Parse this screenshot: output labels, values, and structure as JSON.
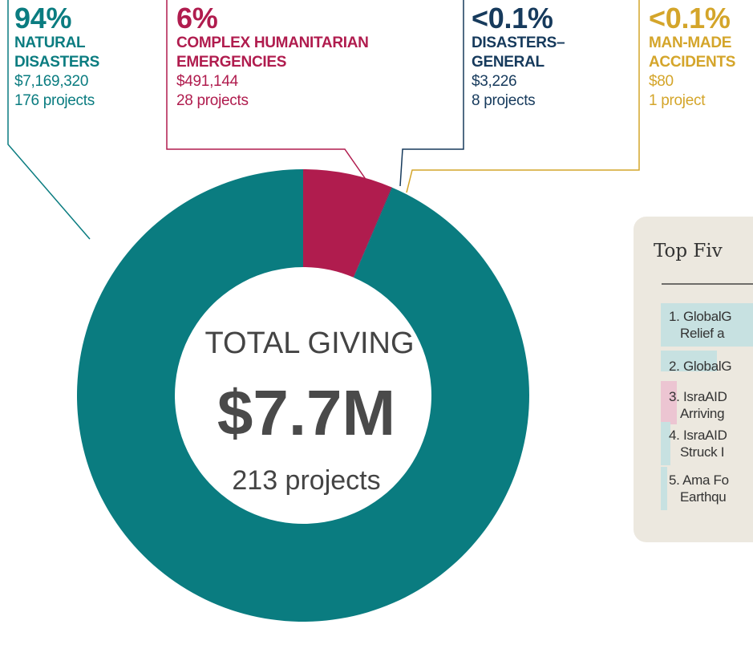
{
  "chart_data": {
    "type": "pie",
    "categories": [
      "NATURAL DISASTERS",
      "COMPLEX HUMANITARIAN EMERGENCIES",
      "DISASTERS–GENERAL",
      "MAN-MADE ACCIDENTS"
    ],
    "values": [
      7169320,
      491144,
      3226,
      80
    ],
    "value_labels": [
      "$7,169,320",
      "$491,144",
      "$3,226",
      "$80"
    ],
    "percent_labels": [
      "94%",
      "6%",
      "<0.1%",
      "<0.1%"
    ],
    "project_labels": [
      "176 projects",
      "28 projects",
      "8 projects",
      "1 project"
    ],
    "colors": [
      "#0a7c80",
      "#b01c4e",
      "#163a5c",
      "#d4a52a"
    ],
    "center": {
      "title": "TOTAL GIVING",
      "total": "$7.7M",
      "projects": "213 projects"
    }
  },
  "panel": {
    "title": "Top Fiv",
    "items": [
      [
        "1. GlobalG",
        "Relief a"
      ],
      [
        "2. GlobalG"
      ],
      [
        "3. IsraAID",
        "Arriving"
      ],
      [
        "4. IsraAID",
        "Struck I"
      ],
      [
        "5. Ama Fo",
        "Earthqu"
      ]
    ]
  }
}
